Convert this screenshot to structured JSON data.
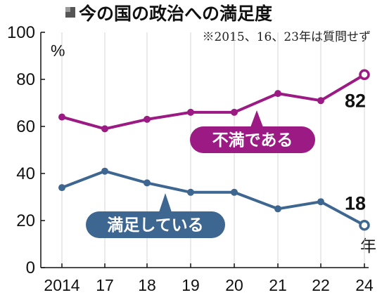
{
  "chart_data": {
    "type": "line",
    "title": "今の国の政治への満足度",
    "note": "※2015、16、23年は質問せず",
    "y_unit": "%",
    "x_unit": "年",
    "ylim": [
      0,
      100
    ],
    "y_ticks": [
      0,
      20,
      40,
      60,
      80,
      100
    ],
    "x": [
      "2014",
      "17",
      "18",
      "19",
      "20",
      "21",
      "22",
      "24"
    ],
    "grid": "vertical",
    "series": [
      {
        "name": "不満である",
        "color": "#9b1a83",
        "values": [
          64,
          59,
          63,
          66,
          66,
          74,
          71,
          82
        ],
        "end_label": "82"
      },
      {
        "name": "満足している",
        "color": "#3d6690",
        "values": [
          34,
          41,
          36,
          32,
          32,
          25,
          28,
          18
        ],
        "end_label": "18"
      }
    ]
  }
}
